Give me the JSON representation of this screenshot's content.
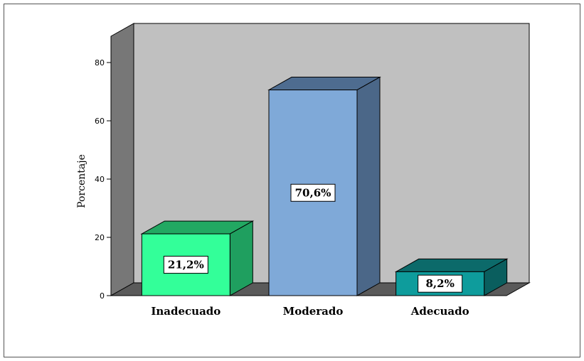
{
  "chart_data": {
    "type": "bar",
    "style": "3d",
    "categories": [
      "Inadecuado",
      "Moderado",
      "Adecuado"
    ],
    "values": [
      21.2,
      70.6,
      8.2
    ],
    "data_labels": [
      "21,2%",
      "70,6%",
      "8,2%"
    ],
    "ylabel": "Porcentaje",
    "xlabel": "",
    "title": "",
    "ylim": [
      0,
      80
    ],
    "yticks": [
      0,
      20,
      40,
      60,
      80
    ],
    "grid": false,
    "legend": "none",
    "colors": {
      "bars": [
        {
          "front": "#33ff99",
          "side": "#1f9f5f",
          "top": "#22a862"
        },
        {
          "front": "#7fa9d8",
          "side": "#4b6788",
          "top": "#4e6c90"
        },
        {
          "front": "#0e9c9c",
          "side": "#0a5e5e",
          "top": "#0c6a6a"
        }
      ],
      "back_wall": "#c0c0c0",
      "side_wall": "#777777",
      "floor": "#5a5a5a"
    }
  }
}
